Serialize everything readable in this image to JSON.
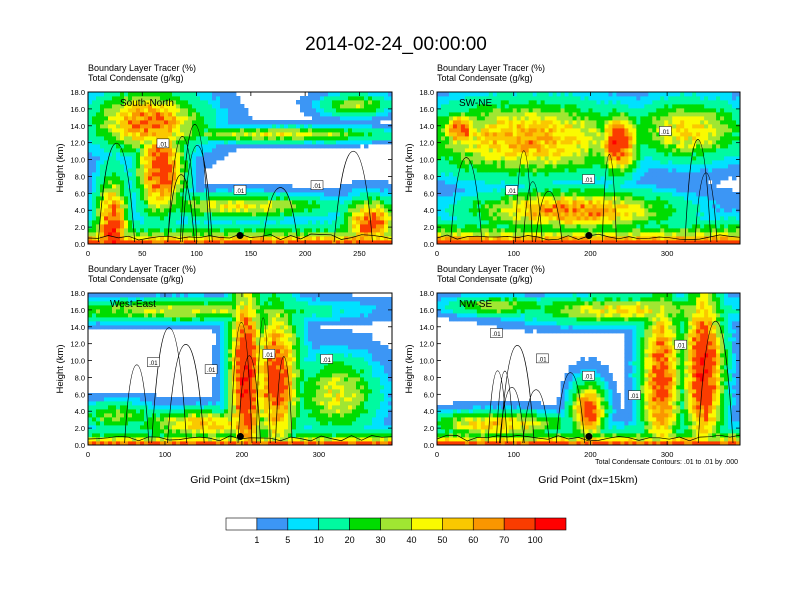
{
  "title": "2014-02-24_00:00:00",
  "panel_header": {
    "line1": "Boundary Layer Tracer",
    "line1_units": "(%)",
    "line2": "Total Condensate",
    "line2_units": "(g/kg)"
  },
  "ylabel": "Height (km)",
  "xlabel": "Grid Point (dx=15km)",
  "contour_note": "Total Condensate Contours: .01 to .01 by .000",
  "contour_label": ".01",
  "colorbar": {
    "colors": [
      "#ffffff",
      "#3c96f5",
      "#00e1ff",
      "#00faa0",
      "#00dc00",
      "#a0e632",
      "#fafa00",
      "#fac800",
      "#fa9600",
      "#fa3c00",
      "#ff0000"
    ],
    "labels": [
      "1",
      "5",
      "10",
      "20",
      "30",
      "40",
      "50",
      "60",
      "70",
      "100"
    ]
  },
  "chart_data": [
    {
      "type": "heatmap",
      "panel": "South-North",
      "label": "South-North",
      "xlim": [
        0,
        280
      ],
      "xticks": [
        0,
        50,
        100,
        150,
        200,
        250
      ],
      "ylim": [
        0,
        18
      ],
      "yticks": [
        "0.0",
        "2.0",
        "4.0",
        "6.0",
        "8.0",
        "10.0",
        "12.0",
        "14.0",
        "16.0",
        "18.0"
      ],
      "marker": {
        "x": 140,
        "y": 1.0
      },
      "contour_label_count": 3
    },
    {
      "type": "heatmap",
      "panel": "SW-NE",
      "label": "SW-NE",
      "xlim": [
        0,
        395
      ],
      "xticks": [
        0,
        100,
        200,
        300
      ],
      "ylim": [
        0,
        18
      ],
      "yticks": [
        "0.0",
        "2.0",
        "4.0",
        "6.0",
        "8.0",
        "10.0",
        "12.0",
        "14.0",
        "16.0",
        "18.0"
      ],
      "marker": {
        "x": 198,
        "y": 1.0
      },
      "contour_label_count": 3
    },
    {
      "type": "heatmap",
      "panel": "West-East",
      "label": "West-East",
      "xlim": [
        0,
        395
      ],
      "xticks": [
        0,
        100,
        200,
        300
      ],
      "ylim": [
        0,
        18
      ],
      "yticks": [
        "0.0",
        "2.0",
        "4.0",
        "6.0",
        "8.0",
        "10.0",
        "12.0",
        "14.0",
        "16.0",
        "18.0"
      ],
      "marker": {
        "x": 198,
        "y": 1.0
      },
      "contour_label_count": 4
    },
    {
      "type": "heatmap",
      "panel": "NW-SE",
      "label": "NW-SE",
      "xlim": [
        0,
        395
      ],
      "xticks": [
        0,
        100,
        200,
        300
      ],
      "ylim": [
        0,
        18
      ],
      "yticks": [
        "0.0",
        "2.0",
        "4.0",
        "6.0",
        "8.0",
        "10.0",
        "12.0",
        "14.0",
        "16.0",
        "18.0"
      ],
      "marker": {
        "x": 198,
        "y": 1.0
      },
      "contour_label_count": 5
    }
  ]
}
